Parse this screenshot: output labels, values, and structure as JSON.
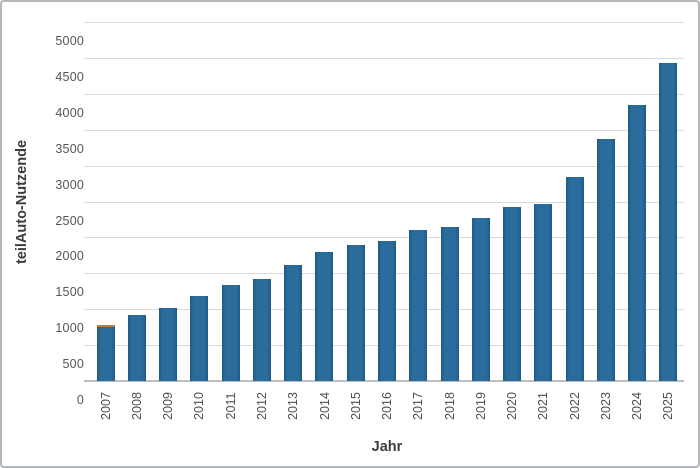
{
  "chart_data": {
    "type": "bar",
    "title": "",
    "xlabel": "Jahr",
    "ylabel": "teilAuto-Nutzende",
    "categories": [
      "2007",
      "2008",
      "2009",
      "2010",
      "2011",
      "2012",
      "2013",
      "2014",
      "2015",
      "2016",
      "2017",
      "2018",
      "2019",
      "2020",
      "2021",
      "2022",
      "2023",
      "2024",
      "2025"
    ],
    "values": [
      780,
      925,
      1015,
      1180,
      1340,
      1420,
      1620,
      1800,
      1890,
      1955,
      2100,
      2150,
      2265,
      2420,
      2470,
      2840,
      3370,
      3850,
      4430
    ],
    "ylim": [
      0,
      5000
    ],
    "ytick_step": 500,
    "grid": true,
    "legend_position": "none",
    "colors": {
      "bar_fill": "#2a6d9c",
      "bar_edge": "#1f5c87",
      "first_bar_top_accent": "#c1793d",
      "gridline": "#d9d9d9",
      "axis_line": "#bfbfbf",
      "tick_label": "#555555",
      "axis_title": "#3d3d3d",
      "frame_border": "#b4b7b9",
      "background": "#ffffff"
    }
  }
}
